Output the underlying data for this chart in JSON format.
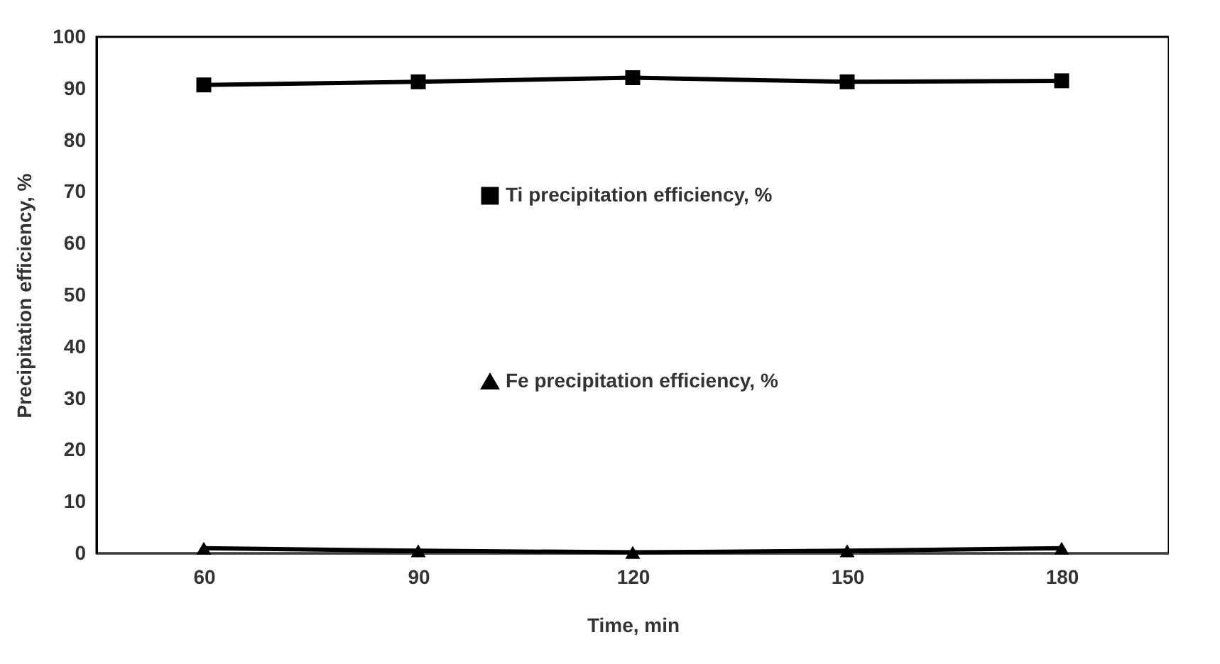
{
  "chart_data": {
    "type": "line",
    "xlabel": "Time, min",
    "ylabel": "Precipitation efficiency, %",
    "categories": [
      "60",
      "90",
      "120",
      "150",
      "180"
    ],
    "series": [
      {
        "name": "Ti precipitation efficiency, %",
        "color": "#000000",
        "marker": "square",
        "values": [
          90.7,
          91.3,
          92.1,
          91.3,
          91.5
        ]
      },
      {
        "name": "Fe precipitation efficiency, %",
        "color": "#000000",
        "marker": "triangle",
        "values": [
          1,
          0.5,
          0.2,
          0.5,
          1
        ]
      }
    ],
    "ylim": [
      0,
      100
    ],
    "yticks": [
      0,
      10,
      20,
      30,
      40,
      50,
      60,
      70,
      80,
      90,
      100
    ],
    "grid": false,
    "legend": "center",
    "line_style": "solid"
  }
}
